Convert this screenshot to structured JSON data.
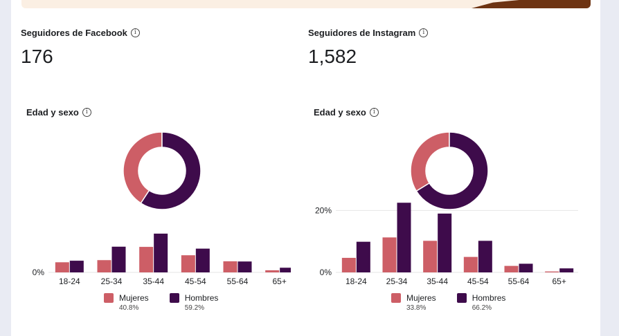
{
  "colors": {
    "women": "#cd5e66",
    "men": "#3e0b4b",
    "grid": "#e4e4e4"
  },
  "panels": [
    {
      "id": "facebook",
      "followers_label": "Seguidores de Facebook",
      "followers_count": "176",
      "section_label": "Edad y sexo",
      "legend": [
        {
          "name": "Mujeres",
          "pct": "40.8%"
        },
        {
          "name": "Hombres",
          "pct": "59.2%"
        }
      ]
    },
    {
      "id": "instagram",
      "followers_label": "Seguidores de Instagram",
      "followers_count": "1,582",
      "section_label": "Edad y sexo",
      "legend": [
        {
          "name": "Mujeres",
          "pct": "33.8%"
        },
        {
          "name": "Hombres",
          "pct": "66.2%"
        }
      ]
    }
  ],
  "chart_data": [
    {
      "type": "pie",
      "categories": [
        "Mujeres",
        "Hombres"
      ],
      "values": [
        40.8,
        59.2
      ]
    },
    {
      "type": "bar",
      "categories": [
        "18-24",
        "25-34",
        "35-44",
        "45-54",
        "55-64",
        "65+"
      ],
      "series": [
        {
          "name": "Mujeres",
          "values": [
            5.2,
            6.3,
            13.1,
            8.8,
            5.7,
            1.1
          ]
        },
        {
          "name": "Hombres",
          "values": [
            6.0,
            13.2,
            19.9,
            12.2,
            5.6,
            2.4
          ]
        }
      ],
      "yticks": [
        {
          "value": 0,
          "label": "0%"
        }
      ],
      "ylim": [
        0,
        22
      ]
    },
    {
      "type": "pie",
      "categories": [
        "Mujeres",
        "Hombres"
      ],
      "values": [
        33.8,
        66.2
      ]
    },
    {
      "type": "bar",
      "categories": [
        "18-24",
        "25-34",
        "35-44",
        "45-54",
        "55-64",
        "65+"
      ],
      "series": [
        {
          "name": "Mujeres",
          "values": [
            4.7,
            11.3,
            10.2,
            5.0,
            2.1,
            0.3
          ]
        },
        {
          "name": "Hombres",
          "values": [
            9.9,
            22.5,
            19.0,
            10.2,
            2.8,
            1.3
          ]
        }
      ],
      "yticks": [
        {
          "value": 0,
          "label": "0%"
        },
        {
          "value": 20,
          "label": "20%"
        }
      ],
      "ylim": [
        0,
        23
      ]
    }
  ]
}
